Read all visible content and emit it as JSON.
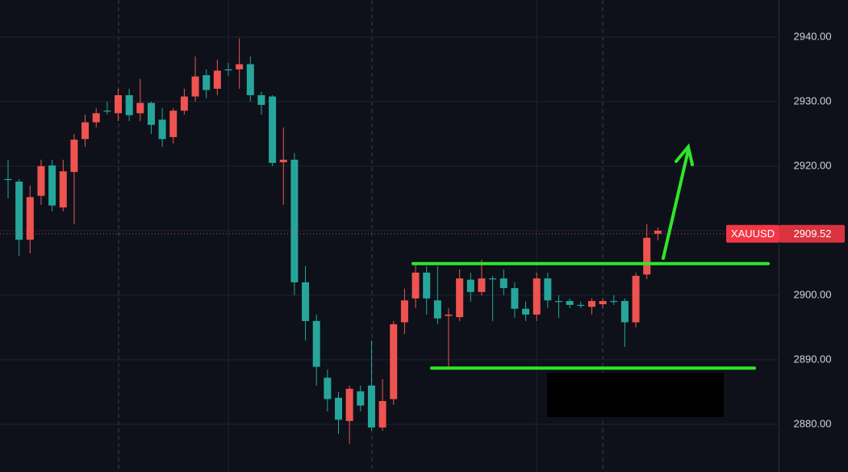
{
  "chart_data": {
    "type": "candlestick",
    "categories": [
      null,
      null,
      null,
      null,
      null,
      null,
      null,
      null,
      null,
      null,
      null,
      null,
      null,
      null,
      null,
      null,
      null,
      null,
      null,
      null,
      null,
      null,
      null,
      null,
      null,
      null,
      null,
      null,
      null,
      null,
      null,
      null,
      null,
      null,
      null,
      null,
      null,
      null,
      null,
      null,
      null,
      null,
      null,
      null,
      null,
      null,
      null,
      null,
      null,
      null,
      null,
      null,
      null,
      null,
      null,
      null,
      null,
      null,
      null,
      null
    ],
    "open": [
      2918,
      2908.6,
      2915.2,
      2920,
      2913.9,
      2919.2,
      2924.1,
      2926.8,
      2928.2,
      2928.6,
      2931,
      2927.9,
      2929.8,
      2926.4,
      2924.2,
      2928.6,
      2930.8,
      2933.9,
      2931.8,
      2934.8,
      2935,
      2935.8,
      2931,
      2929.5,
      2920.5,
      2921,
      2902,
      2896,
      2888.9,
      2883.9,
      2880.7,
      2885.5,
      2882.9,
      2879.5,
      2883.6,
      2895.5,
      2899.2,
      2903.5,
      2899.5,
      2896.4,
      2897,
      2902.6,
      2900.5,
      2902.6,
      2902.6,
      2901.1,
      2897.9,
      2897,
      2902.6,
      2899.2,
      2899.1,
      2898.5,
      2898.5,
      2899.1,
      2899.1,
      2899.1,
      2895.8,
      2903,
      2908.9,
      2910
    ],
    "high": [
      2921,
      2918,
      2917,
      2921,
      2921,
      2921,
      2925,
      2928,
      2929,
      2930,
      2932,
      2932,
      2933.5,
      2930,
      2929,
      2929,
      2932,
      2937,
      2935,
      2936.5,
      2936,
      2939.8,
      2937,
      2931.5,
      2931,
      2926,
      2922,
      2904.5,
      2897,
      2888.5,
      2885,
      2886,
      2886,
      2893,
      2887,
      2896,
      2901,
      2905,
      2904.5,
      2904.5,
      2898,
      2904,
      2903.5,
      2905.5,
      2903,
      2904,
      2902,
      2899,
      2903.5,
      2903.5,
      2900,
      2899.5,
      2899,
      2899.5,
      2899.5,
      2900,
      2899.5,
      2903.5,
      2911,
      2910.5
    ],
    "low": [
      2915,
      2906.1,
      2906.5,
      2914,
      2913,
      2913,
      2911,
      2923,
      2926,
      2928,
      2927,
      2927,
      2927,
      2925,
      2923,
      2923.5,
      2928,
      2930,
      2930.5,
      2931,
      2934,
      2932,
      2930,
      2928,
      2920,
      2914,
      2900,
      2893,
      2886,
      2882,
      2878.5,
      2877,
      2882,
      2879,
      2879,
      2883,
      2894,
      2898,
      2897,
      2895.5,
      2889,
      2896,
      2899,
      2900,
      2896,
      2900,
      2896.5,
      2896,
      2896,
      2898,
      2896.5,
      2898,
      2898,
      2897,
      2898,
      2898.5,
      2892,
      2895,
      2902.5,
      2908.5
    ],
    "close": [
      2918,
      2917.6,
      2908.6,
      2915.4,
      2920.1,
      2913.6,
      2919.1,
      2924.2,
      2926.8,
      2928.6,
      2928.2,
      2931,
      2928.2,
      2929.8,
      2927.2,
      2924.5,
      2928.6,
      2930.8,
      2934.1,
      2932,
      2935,
      2935,
      2935.8,
      2931,
      2930.8,
      2920.6,
      2921,
      2902,
      2896,
      2887.2,
      2884.1,
      2880.5,
      2885.1,
      2886,
      2879.5,
      2883.9,
      2895.8,
      2899.5,
      2903.5,
      2899.2,
      2896.8,
      2896.6,
      2902.4,
      2900.5,
      2902.6,
      2902.6,
      2901.1,
      2897.9,
      2897,
      2902.6,
      2899.1,
      2899.1,
      2898.5,
      2898.2,
      2898.6,
      2899.1,
      2899.1,
      2895.8,
      2903.2,
      2909.52
    ],
    "up_color": "#26a69a",
    "down_color": "#ef5350",
    "ylim": [
      2872.6,
      2945.75
    ],
    "yticks": [
      {
        "value": 2880,
        "label": "2880.00"
      },
      {
        "value": 2890,
        "label": "2890.00"
      },
      {
        "value": 2900,
        "label": "2900.00"
      },
      {
        "value": 2910,
        "label": "2910.00"
      },
      {
        "value": 2920,
        "label": "2920.00"
      },
      {
        "value": 2930,
        "label": "2930.00"
      },
      {
        "value": 2940,
        "label": "2940.00"
      }
    ],
    "ytick_labels_shown": [
      0,
      1,
      2,
      4,
      5,
      6
    ],
    "grid": true,
    "last_price": {
      "symbol": "XAUUSD",
      "value": 2909.52,
      "label": "2909.52",
      "color": "#f23645"
    },
    "levels": [
      {
        "value": 2904.9,
        "color": "#2ee62b"
      },
      {
        "value": 2888.7,
        "color": "#2ee62b"
      }
    ]
  }
}
